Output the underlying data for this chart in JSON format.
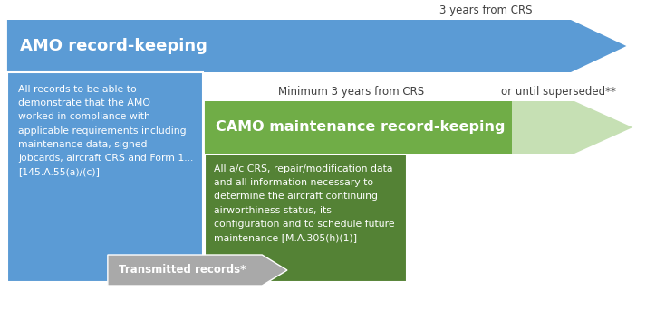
{
  "bg_color": "#ffffff",
  "amo_arrow_color": "#5B9BD5",
  "camo_arrow_dark": "#70AD47",
  "camo_arrow_light": "#C6E0B4",
  "amo_box_color": "#5B9BD5",
  "camo_box_color": "#548235",
  "transmitted_box_color": "#A9A9A9",
  "amo_title": "AMO record-keeping",
  "camo_title": "CAMO maintenance record-keeping",
  "amo_label": "3 years from CRS",
  "camo_label": "Minimum 3 years from CRS",
  "superseded_label": "or until superseded**",
  "amo_text": "All records to be able to\ndemonstrate that the AMO\nworked in compliance with\napplicable requirements including\nmaintenance data, signed\njobcards, aircraft CRS and Form 1...\n[145.A.55(a)/(c)]",
  "camo_text": "All a/c CRS, repair/modification data\nand all information necessary to\ndetermine the aircraft continuing\nairworthiness status, its\nconfiguration and to schedule future\nmaintenance [M.A.305(h)(1)]",
  "transmitted_text": "Transmitted records*"
}
